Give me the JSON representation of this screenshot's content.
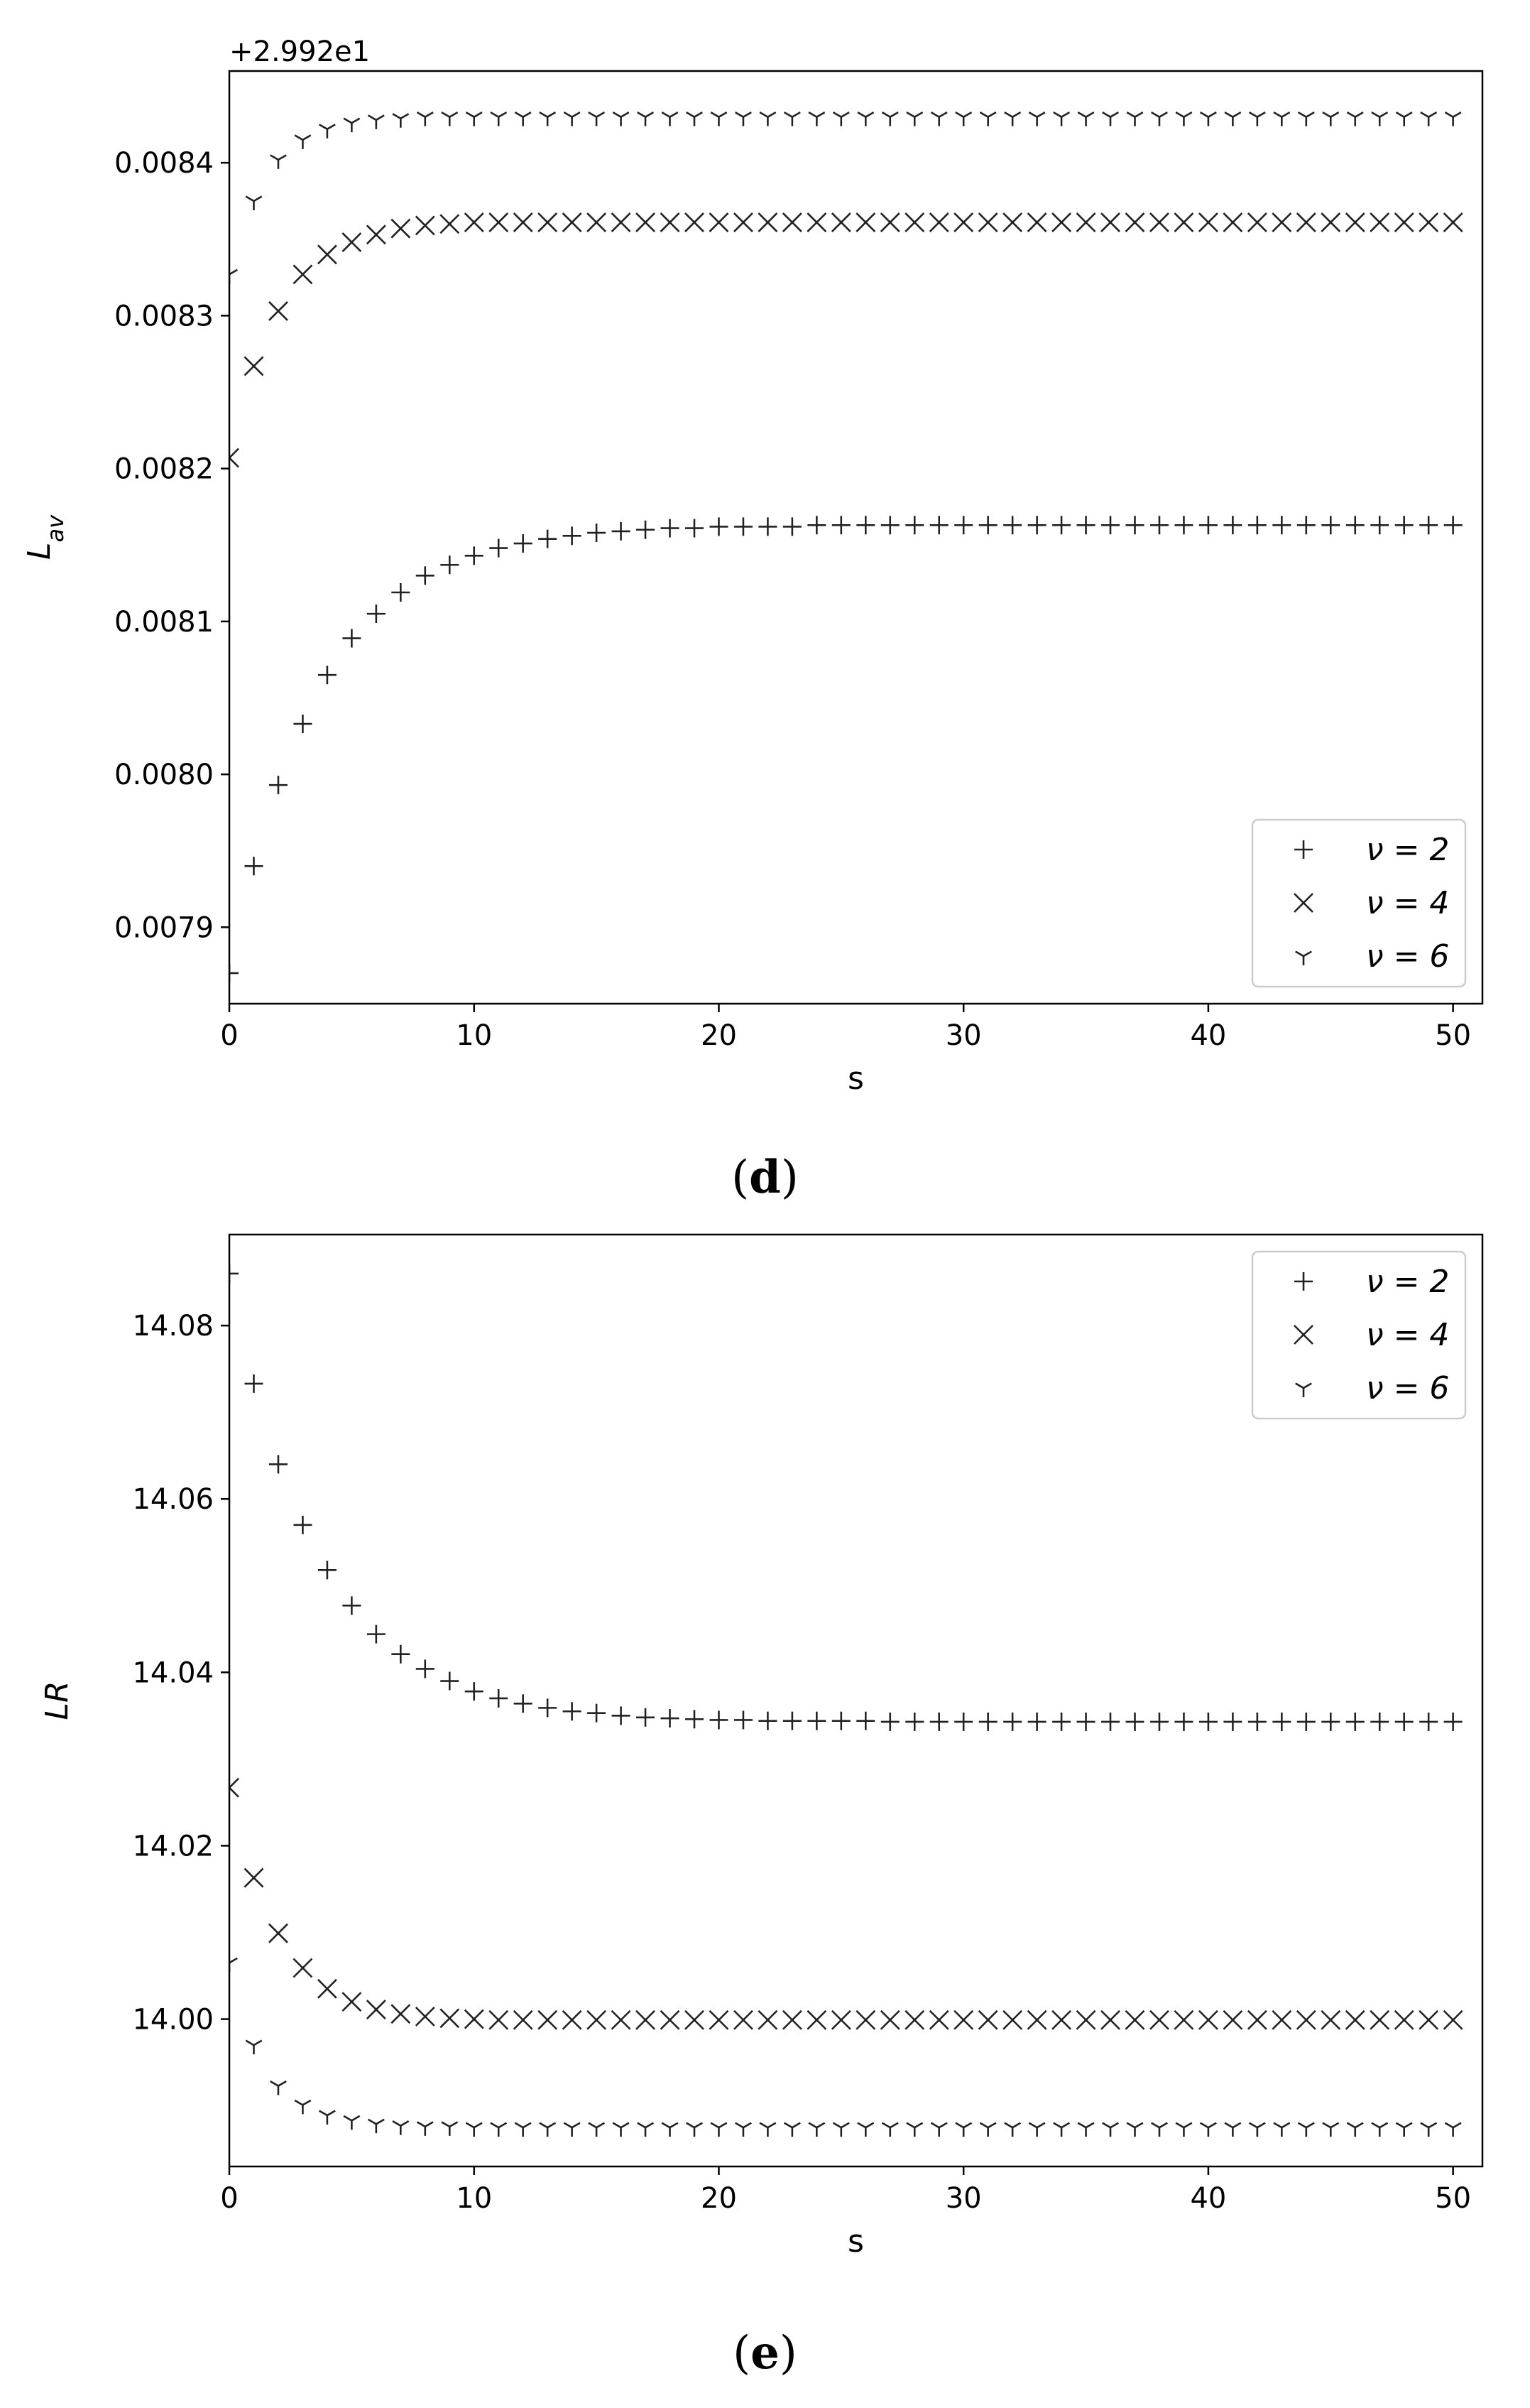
{
  "captions": {
    "d": "d",
    "e": "e"
  },
  "chart_data": [
    {
      "panel": "d",
      "type": "scatter",
      "xlabel": "s",
      "ylabel": "L_av",
      "offset_text": "+2.992e1",
      "offset": 29.92,
      "xlim": [
        0,
        51.2
      ],
      "ylim": [
        0.00785,
        0.00846
      ],
      "xticks": [
        0,
        10,
        20,
        30,
        40,
        50
      ],
      "yticks": [
        0.0079,
        0.008,
        0.0081,
        0.0082,
        0.0083,
        0.0084
      ],
      "ytick_labels": [
        "0.0079",
        "0.0080",
        "0.0081",
        "0.0082",
        "0.0083",
        "0.0084"
      ],
      "grid": false,
      "legend_position": "lower-right",
      "x": [
        0,
        1,
        2,
        3,
        4,
        5,
        6,
        7,
        8,
        9,
        10,
        11,
        12,
        13,
        14,
        15,
        16,
        17,
        18,
        19,
        20,
        21,
        22,
        23,
        24,
        25,
        26,
        27,
        28,
        29,
        30,
        31,
        32,
        33,
        34,
        35,
        36,
        37,
        38,
        39,
        40,
        41,
        42,
        43,
        44,
        45,
        46,
        47,
        48,
        49,
        50
      ],
      "series": [
        {
          "name": "ν = 2",
          "marker": "plus",
          "values": [
            0.00787,
            0.00794,
            0.007993,
            0.008033,
            0.008065,
            0.008089,
            0.008105,
            0.008119,
            0.00813,
            0.008137,
            0.008143,
            0.008148,
            0.008151,
            0.008154,
            0.008156,
            0.008158,
            0.008159,
            0.00816,
            0.008161,
            0.008161,
            0.008162,
            0.008162,
            0.008162,
            0.008162,
            0.008163,
            0.008163,
            0.008163,
            0.008163,
            0.008163,
            0.008163,
            0.008163,
            0.008163,
            0.008163,
            0.008163,
            0.008163,
            0.008163,
            0.008163,
            0.008163,
            0.008163,
            0.008163,
            0.008163,
            0.008163,
            0.008163,
            0.008163,
            0.008163,
            0.008163,
            0.008163,
            0.008163,
            0.008163,
            0.008163,
            0.008163
          ]
        },
        {
          "name": "ν = 4",
          "marker": "x",
          "values": [
            0.008207,
            0.008267,
            0.008303,
            0.008327,
            0.00834,
            0.008348,
            0.008353,
            0.008357,
            0.008359,
            0.00836,
            0.008361,
            0.008361,
            0.008361,
            0.008361,
            0.008361,
            0.008361,
            0.008361,
            0.008361,
            0.008361,
            0.008361,
            0.008361,
            0.008361,
            0.008361,
            0.008361,
            0.008361,
            0.008361,
            0.008361,
            0.008361,
            0.008361,
            0.008361,
            0.008361,
            0.008361,
            0.008361,
            0.008361,
            0.008361,
            0.008361,
            0.008361,
            0.008361,
            0.008361,
            0.008361,
            0.008361,
            0.008361,
            0.008361,
            0.008361,
            0.008361,
            0.008361,
            0.008361,
            0.008361,
            0.008361,
            0.008361,
            0.008361
          ]
        },
        {
          "name": "ν = 6",
          "marker": "tri_down",
          "values": [
            0.008327,
            0.008375,
            0.008402,
            0.008415,
            0.008422,
            0.008426,
            0.008428,
            0.008429,
            0.00843,
            0.00843,
            0.00843,
            0.00843,
            0.00843,
            0.00843,
            0.00843,
            0.00843,
            0.00843,
            0.00843,
            0.00843,
            0.00843,
            0.00843,
            0.00843,
            0.00843,
            0.00843,
            0.00843,
            0.00843,
            0.00843,
            0.00843,
            0.00843,
            0.00843,
            0.00843,
            0.00843,
            0.00843,
            0.00843,
            0.00843,
            0.00843,
            0.00843,
            0.00843,
            0.00843,
            0.00843,
            0.00843,
            0.00843,
            0.00843,
            0.00843,
            0.00843,
            0.00843,
            0.00843,
            0.00843,
            0.00843,
            0.00843,
            0.00843
          ]
        }
      ]
    },
    {
      "panel": "e",
      "type": "scatter",
      "xlabel": "s",
      "ylabel": "LR",
      "xlim": [
        0,
        51.2
      ],
      "ylim": [
        13.983,
        14.0905
      ],
      "xticks": [
        0,
        10,
        20,
        30,
        40,
        50
      ],
      "yticks": [
        14.0,
        14.02,
        14.04,
        14.06,
        14.08
      ],
      "ytick_labels": [
        "14.00",
        "14.02",
        "14.04",
        "14.06",
        "14.08"
      ],
      "grid": false,
      "legend_position": "upper-right",
      "x": [
        0,
        1,
        2,
        3,
        4,
        5,
        6,
        7,
        8,
        9,
        10,
        11,
        12,
        13,
        14,
        15,
        16,
        17,
        18,
        19,
        20,
        21,
        22,
        23,
        24,
        25,
        26,
        27,
        28,
        29,
        30,
        31,
        32,
        33,
        34,
        35,
        36,
        37,
        38,
        39,
        40,
        41,
        42,
        43,
        44,
        45,
        46,
        47,
        48,
        49,
        50
      ],
      "series": [
        {
          "name": "ν = 2",
          "marker": "plus",
          "values": [
            14.086,
            14.0733,
            14.064,
            14.057,
            14.0518,
            14.0477,
            14.0444,
            14.0421,
            14.0404,
            14.039,
            14.0378,
            14.037,
            14.0364,
            14.0359,
            14.0355,
            14.0353,
            14.035,
            14.0348,
            14.0347,
            14.0346,
            14.0345,
            14.0345,
            14.0344,
            14.0344,
            14.0344,
            14.0344,
            14.0344,
            14.0343,
            14.0343,
            14.0343,
            14.0343,
            14.0343,
            14.0343,
            14.0343,
            14.0343,
            14.0343,
            14.0343,
            14.0343,
            14.0343,
            14.0343,
            14.0343,
            14.0343,
            14.0343,
            14.0343,
            14.0343,
            14.0343,
            14.0343,
            14.0343,
            14.0343,
            14.0343,
            14.0343
          ]
        },
        {
          "name": "ν = 4",
          "marker": "x",
          "values": [
            14.0267,
            14.0163,
            14.0099,
            14.0059,
            14.0035,
            14.002,
            14.0011,
            14.0006,
            14.0003,
            14.0001,
            14.0,
            13.9999,
            13.9999,
            13.9999,
            13.9999,
            13.9999,
            13.9999,
            13.9999,
            13.9999,
            13.9999,
            13.9999,
            13.9999,
            13.9999,
            13.9999,
            13.9999,
            13.9999,
            13.9999,
            13.9999,
            13.9999,
            13.9999,
            13.9999,
            13.9999,
            13.9999,
            13.9999,
            13.9999,
            13.9999,
            13.9999,
            13.9999,
            13.9999,
            13.9999,
            13.9999,
            13.9999,
            13.9999,
            13.9999,
            13.9999,
            13.9999,
            13.9999,
            13.9999,
            13.9999,
            13.9999,
            13.9999
          ]
        },
        {
          "name": "ν = 6",
          "marker": "tri_down",
          "values": [
            14.0065,
            13.997,
            13.9923,
            13.9901,
            13.9889,
            13.9883,
            13.9879,
            13.9877,
            13.9876,
            13.9876,
            13.9875,
            13.9875,
            13.9875,
            13.9875,
            13.9875,
            13.9875,
            13.9875,
            13.9875,
            13.9875,
            13.9875,
            13.9875,
            13.9875,
            13.9875,
            13.9875,
            13.9875,
            13.9875,
            13.9875,
            13.9875,
            13.9875,
            13.9875,
            13.9875,
            13.9875,
            13.9875,
            13.9875,
            13.9875,
            13.9875,
            13.9875,
            13.9875,
            13.9875,
            13.9875,
            13.9875,
            13.9875,
            13.9875,
            13.9875,
            13.9875,
            13.9875,
            13.9875,
            13.9875,
            13.9875,
            13.9875,
            13.9875
          ]
        }
      ]
    }
  ]
}
